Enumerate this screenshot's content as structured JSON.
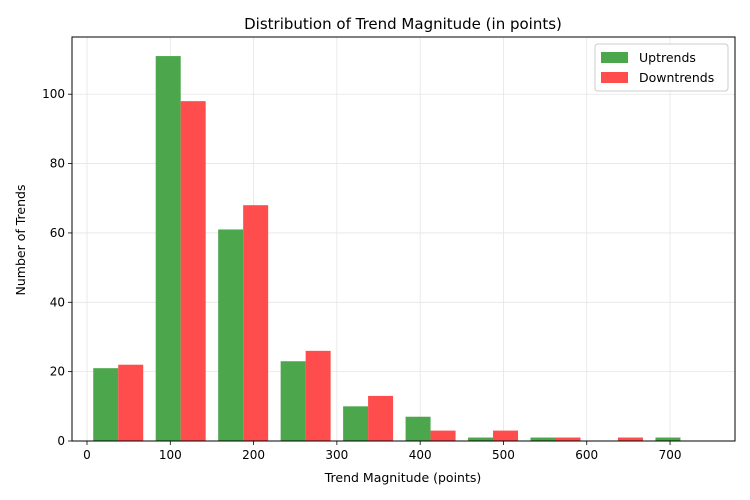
{
  "chart_data": {
    "type": "bar",
    "title": "Distribution of Trend Magnitude (in points)",
    "xlabel": "Trend Magnitude (points)",
    "ylabel": "Number of Trends",
    "xlim": [
      -18,
      778
    ],
    "ylim": [
      0,
      116.5
    ],
    "x_ticks": [
      0,
      100,
      200,
      300,
      400,
      500,
      600,
      700
    ],
    "y_ticks": [
      0,
      20,
      40,
      60,
      80,
      100
    ],
    "bin_edges": [
      0,
      75,
      150,
      225,
      300,
      375,
      450,
      525,
      600,
      675,
      750
    ],
    "grid": true,
    "legend_position": "top-right",
    "series": [
      {
        "name": "Uptrends",
        "color": "#4ca64c",
        "values": [
          21,
          111,
          61,
          23,
          10,
          7,
          1,
          1,
          0,
          1
        ]
      },
      {
        "name": "Downtrends",
        "color": "#ff4c4c",
        "values": [
          22,
          98,
          68,
          26,
          13,
          3,
          3,
          1,
          1,
          0
        ]
      }
    ]
  }
}
